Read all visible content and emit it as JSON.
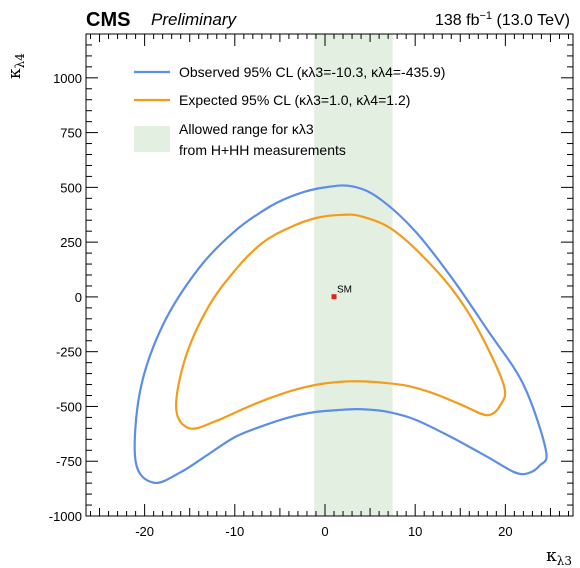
{
  "header": {
    "cms": "CMS",
    "preliminary": "Preliminary",
    "lumi_value": "138 fb",
    "lumi_exp": "−1",
    "lumi_energy": " (13.0 TeV)"
  },
  "chart_data": {
    "type": "line",
    "xlabel": "κλ3",
    "ylabel": "κλ4",
    "xlim": [
      -26.5,
      27.5
    ],
    "ylim": [
      -1000,
      1200
    ],
    "xticks": [
      -20,
      -10,
      0,
      10,
      20
    ],
    "yticks": [
      -1000,
      -750,
      -500,
      -250,
      0,
      250,
      500,
      750,
      1000
    ],
    "xtick_labels": [
      "-20",
      "-10",
      "0",
      "10",
      "20"
    ],
    "ytick_labels": [
      "-1000",
      "-750",
      "-500",
      "-250",
      "0",
      "250",
      "500",
      "750",
      "1000"
    ],
    "allowed_band": {
      "x_range": [
        -1.2,
        7.5
      ],
      "color": "#e3f0e1",
      "legend_line1": "Allowed range for κλ3",
      "legend_line2": "from H+HH measurements"
    },
    "series": [
      {
        "name": "Observed 95% CL (κλ3=-10.3, κλ4=-435.9)",
        "color": "#5b8ee6",
        "x": [
          24.5,
          22,
          18,
          14,
          10,
          6,
          3,
          0,
          -3,
          -6,
          -10,
          -14,
          -18,
          -20.5,
          -21,
          -19,
          -16,
          -13,
          -10,
          -7,
          -4,
          -1,
          2,
          3.5,
          5,
          7,
          10,
          14,
          18,
          21,
          22.5,
          23.8,
          24.5
        ],
        "y": [
          -700,
          -400,
          -150,
          90,
          300,
          450,
          505,
          500,
          470,
          415,
          300,
          130,
          -130,
          -430,
          -750,
          -848,
          -800,
          -720,
          -640,
          -590,
          -550,
          -525,
          -515,
          -512,
          -515,
          -525,
          -560,
          -640,
          -730,
          -800,
          -805,
          -770,
          -700
        ]
      },
      {
        "name": "Expected 95% CL (κλ3=1.0, κλ4=1.2)",
        "color": "#f39c1c",
        "x": [
          19.8,
          17,
          14,
          10,
          7,
          4,
          2,
          -1,
          -4,
          -7,
          -10,
          -13,
          -15.5,
          -16.5,
          -15,
          -12,
          -9,
          -6,
          -3,
          0,
          3,
          6,
          9,
          12,
          15,
          18,
          19.5,
          19.8
        ],
        "y": [
          -400,
          -150,
          40,
          220,
          320,
          368,
          375,
          360,
          315,
          245,
          120,
          -50,
          -280,
          -510,
          -600,
          -565,
          -510,
          -460,
          -420,
          -395,
          -385,
          -390,
          -405,
          -440,
          -490,
          -540,
          -490,
          -400
        ]
      }
    ],
    "sm_point": {
      "x": 1,
      "y": 1,
      "label": "SM",
      "color": "#e0241b"
    },
    "legend_position": "top"
  }
}
